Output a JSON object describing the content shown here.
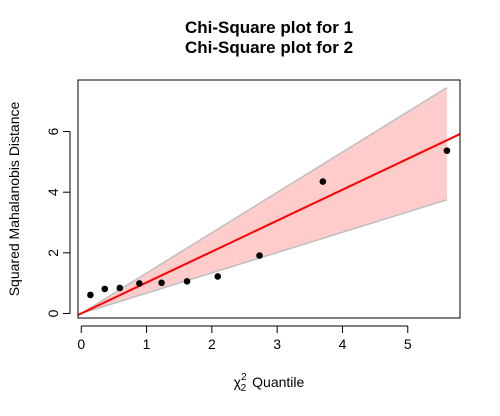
{
  "chart_data": {
    "type": "scatter",
    "title_lines": [
      "Chi-Square plot for 1",
      "Chi-Square plot for 2"
    ],
    "xlabel": {
      "symbol": "χ",
      "superscript": "2",
      "subscript": "2",
      "text": "Quantile"
    },
    "ylabel": "Squared Mahalanobis Distance",
    "xlim": [
      -0.05,
      5.8
    ],
    "ylim": [
      -0.15,
      7.7
    ],
    "xticks": [
      0,
      1,
      2,
      3,
      4,
      5
    ],
    "yticks": [
      0,
      2,
      4,
      6
    ],
    "points": [
      {
        "x": 0.14,
        "y": 0.61
      },
      {
        "x": 0.36,
        "y": 0.81
      },
      {
        "x": 0.59,
        "y": 0.84
      },
      {
        "x": 0.89,
        "y": 0.99
      },
      {
        "x": 1.23,
        "y": 1.01
      },
      {
        "x": 1.62,
        "y": 1.06
      },
      {
        "x": 2.09,
        "y": 1.22
      },
      {
        "x": 2.73,
        "y": 1.91
      },
      {
        "x": 3.7,
        "y": 4.35
      },
      {
        "x": 5.6,
        "y": 5.37
      }
    ],
    "reference_line": {
      "intercept": 0.0,
      "slope": 1.02,
      "color": "#ff0000"
    },
    "confidence_band": {
      "fill": "#ffcccc",
      "edge": "#bebebe",
      "upper": [
        {
          "x": 0.0,
          "y": 0.0
        },
        {
          "x": 5.6,
          "y": 7.45
        }
      ],
      "lower": [
        {
          "x": 0.0,
          "y": 0.0
        },
        {
          "x": 5.6,
          "y": 3.75
        }
      ]
    },
    "point_color": "#000000",
    "grid": false,
    "legend": "none"
  }
}
